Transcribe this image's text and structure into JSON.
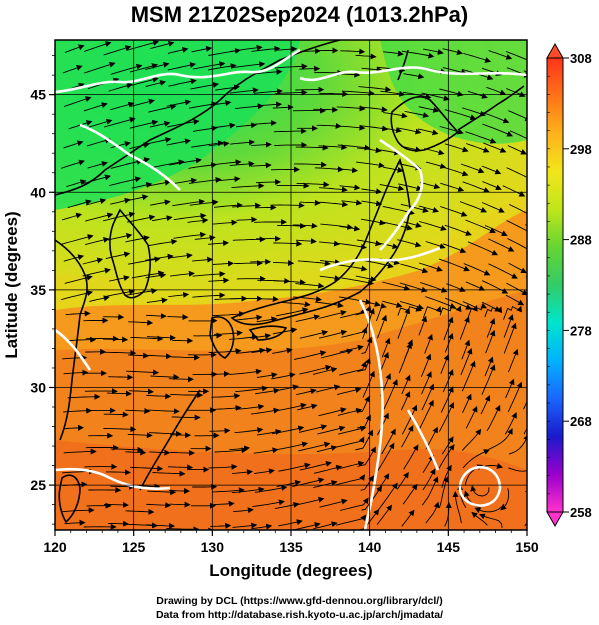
{
  "title": "MSM 21Z02Sep2024 (1013.2hPa)",
  "axes": {
    "xlabel": "Longitude (degrees)",
    "ylabel": "Latitude  (degrees)",
    "xticks": [
      "120",
      "125",
      "130",
      "135",
      "140",
      "145",
      "150"
    ],
    "yticks": [
      "25",
      "30",
      "35",
      "40",
      "45"
    ]
  },
  "colorbar": {
    "min": 258,
    "max": 308,
    "ticks": [
      "308",
      "298",
      "288",
      "278",
      "268",
      "258"
    ],
    "colors": [
      "#ff33cc",
      "#9900cc",
      "#1a1acc",
      "#1a66ff",
      "#00b2ff",
      "#00e5cc",
      "#33cc66",
      "#66d433",
      "#bfe61a",
      "#f2e61a",
      "#ffb21a",
      "#ff7319",
      "#ff3319"
    ]
  },
  "credits": {
    "line1": "Drawing by DCL (https://www.gfd-dennou.org/library/dcl/)",
    "line2": "Data from http://database.rish.kyoto-u.ac.jp/arch/jmadata/"
  }
}
